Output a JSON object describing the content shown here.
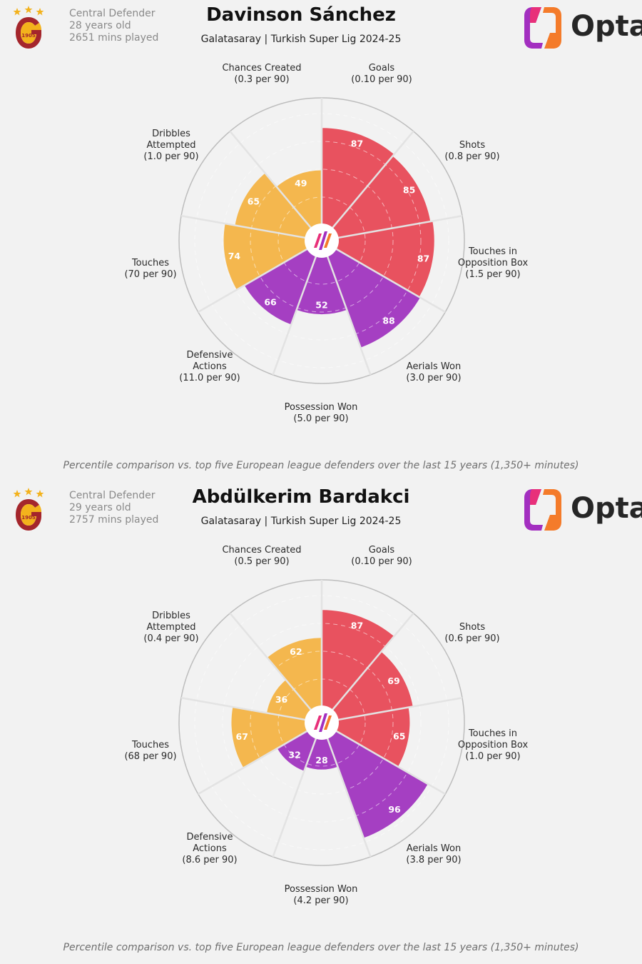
{
  "colors": {
    "attacking": "#e8525f",
    "possession": "#f4b74e",
    "defending": "#a53fc2",
    "background": "#f2f2f2",
    "crest_red": "#a4262c",
    "crest_gold": "#f3b21c"
  },
  "players": [
    {
      "position": "Central Defender",
      "age": "28 years old",
      "minutes": "2651 mins played",
      "name": "Davinson Sánchez",
      "subtitle": "Galatasaray | Turkish Super Lig 2024-25",
      "crest_text": "1905",
      "logo_text": "Opta",
      "footnote": "Percentile comparison vs. top five European league defenders over the last 15 years (1,350+ minutes)",
      "chart_data": {
        "type": "polar-area",
        "title": "Davinson Sánchez",
        "scale": [
          0,
          100
        ],
        "categories": [
          {
            "name": "Goals",
            "lines": [
              "Goals",
              "(0.10 per 90)"
            ],
            "value": 87,
            "group": "attacking"
          },
          {
            "name": "Shots",
            "lines": [
              "Shots",
              "(0.8 per 90)"
            ],
            "value": 85,
            "group": "attacking"
          },
          {
            "name": "Touches in Opposition Box",
            "lines": [
              "Touches in",
              "Opposition Box",
              "(1.5 per 90)"
            ],
            "value": 87,
            "group": "attacking"
          },
          {
            "name": "Aerials Won",
            "lines": [
              "Aerials Won",
              "(3.0 per 90)"
            ],
            "value": 88,
            "group": "defending"
          },
          {
            "name": "Possession Won",
            "lines": [
              "Possession Won",
              "(5.0 per 90)"
            ],
            "value": 52,
            "group": "defending"
          },
          {
            "name": "Defensive Actions",
            "lines": [
              "Defensive",
              "Actions",
              "(11.0 per 90)"
            ],
            "value": 66,
            "group": "defending"
          },
          {
            "name": "Touches",
            "lines": [
              "Touches",
              "(70 per 90)"
            ],
            "value": 74,
            "group": "possession"
          },
          {
            "name": "Dribbles Attempted",
            "lines": [
              "Dribbles",
              "Attempted",
              "(1.0 per 90)"
            ],
            "value": 65,
            "group": "possession"
          },
          {
            "name": "Chances Created",
            "lines": [
              "Chances Created",
              "(0.3 per 90)"
            ],
            "value": 49,
            "group": "possession"
          }
        ]
      }
    },
    {
      "position": "Central Defender",
      "age": "29 years old",
      "minutes": "2757 mins played",
      "name": "Abdülkerim Bardakci",
      "subtitle": "Galatasaray | Turkish Super Lig 2024-25",
      "crest_text": "1905",
      "logo_text": "Opta",
      "footnote": "Percentile comparison vs. top five European league defenders over the last 15 years (1,350+ minutes)",
      "chart_data": {
        "type": "polar-area",
        "title": "Abdülkerim Bardakci",
        "scale": [
          0,
          100
        ],
        "categories": [
          {
            "name": "Goals",
            "lines": [
              "Goals",
              "(0.10 per 90)"
            ],
            "value": 87,
            "group": "attacking"
          },
          {
            "name": "Shots",
            "lines": [
              "Shots",
              "(0.6 per 90)"
            ],
            "value": 69,
            "group": "attacking"
          },
          {
            "name": "Touches in Opposition Box",
            "lines": [
              "Touches in",
              "Opposition Box",
              "(1.0 per 90)"
            ],
            "value": 65,
            "group": "attacking"
          },
          {
            "name": "Aerials Won",
            "lines": [
              "Aerials Won",
              "(3.8 per 90)"
            ],
            "value": 96,
            "group": "defending"
          },
          {
            "name": "Possession Won",
            "lines": [
              "Possession Won",
              "(4.2 per 90)"
            ],
            "value": 28,
            "group": "defending"
          },
          {
            "name": "Defensive Actions",
            "lines": [
              "Defensive",
              "Actions",
              "(8.6 per 90)"
            ],
            "value": 32,
            "group": "defending"
          },
          {
            "name": "Touches",
            "lines": [
              "Touches",
              "(68 per 90)"
            ],
            "value": 67,
            "group": "possession"
          },
          {
            "name": "Dribbles Attempted",
            "lines": [
              "Dribbles",
              "Attempted",
              "(0.4 per 90)"
            ],
            "value": 36,
            "group": "possession"
          },
          {
            "name": "Chances Created",
            "lines": [
              "Chances Created",
              "(0.5 per 90)"
            ],
            "value": 62,
            "group": "possession"
          }
        ]
      }
    }
  ]
}
